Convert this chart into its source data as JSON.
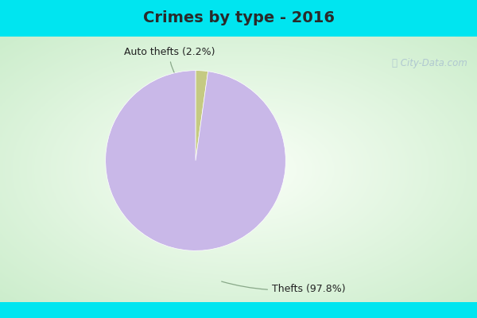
{
  "title": "Crimes by type - 2016",
  "slices": [
    2.2,
    97.8
  ],
  "labels": [
    "Auto thefts (2.2%)",
    "Thefts (97.8%)"
  ],
  "colors": [
    "#c5ca82",
    "#c9b8e8"
  ],
  "background_cyan": "#00e5f0",
  "background_main_center": "#f0f8f0",
  "background_main_edge": "#c8e8c8",
  "title_fontsize": 14,
  "label_fontsize": 9,
  "title_color": "#2a2a2a",
  "label_color": "#222222",
  "watermark_color": "#b0c8d0",
  "top_bar_height": 0.115,
  "bottom_bar_height": 0.05
}
